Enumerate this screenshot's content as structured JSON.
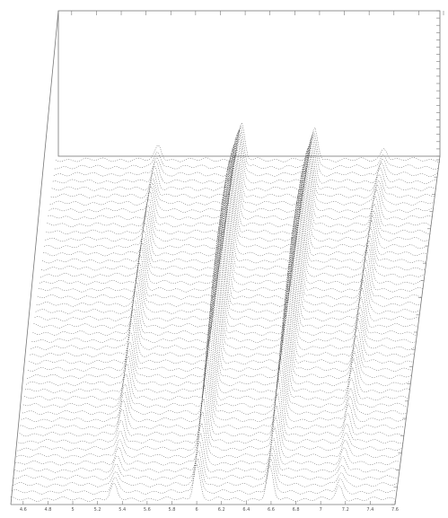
{
  "chart_data": {
    "type": "waterfall",
    "xlim": [
      4.5,
      7.6
    ],
    "xticks": [
      4.6,
      4.8,
      5.0,
      5.2,
      5.4,
      5.6,
      5.8,
      6.0,
      6.2,
      6.4,
      6.6,
      6.8,
      7.0,
      7.2,
      7.4,
      7.6
    ],
    "peaks": {
      "centers": [
        5.33,
        6.0,
        6.59,
        7.15
      ],
      "heights": [
        0.4,
        1.0,
        0.9,
        0.35
      ]
    }
  }
}
